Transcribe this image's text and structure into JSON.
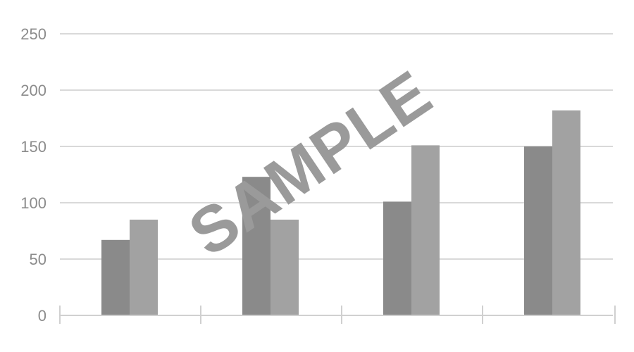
{
  "chart_data": {
    "type": "bar",
    "categories": [
      "",
      "",
      "",
      ""
    ],
    "series": [
      {
        "values": [
          67,
          123,
          101,
          150
        ],
        "color": "#8a8a8a"
      },
      {
        "values": [
          85,
          85,
          151,
          182
        ],
        "color": "#a2a2a2"
      }
    ],
    "ylim": [
      0,
      250
    ],
    "yticks": [
      "0",
      "50",
      "100",
      "150",
      "200",
      "250"
    ],
    "grid": true,
    "legend": "none"
  },
  "colors": {
    "grid": "#d9d9d9",
    "tick_text": "#8c8c8c",
    "axis": "#d0d0d0",
    "watermark": "#9a9a9a"
  },
  "watermark": {
    "text": "SAMPLE"
  }
}
